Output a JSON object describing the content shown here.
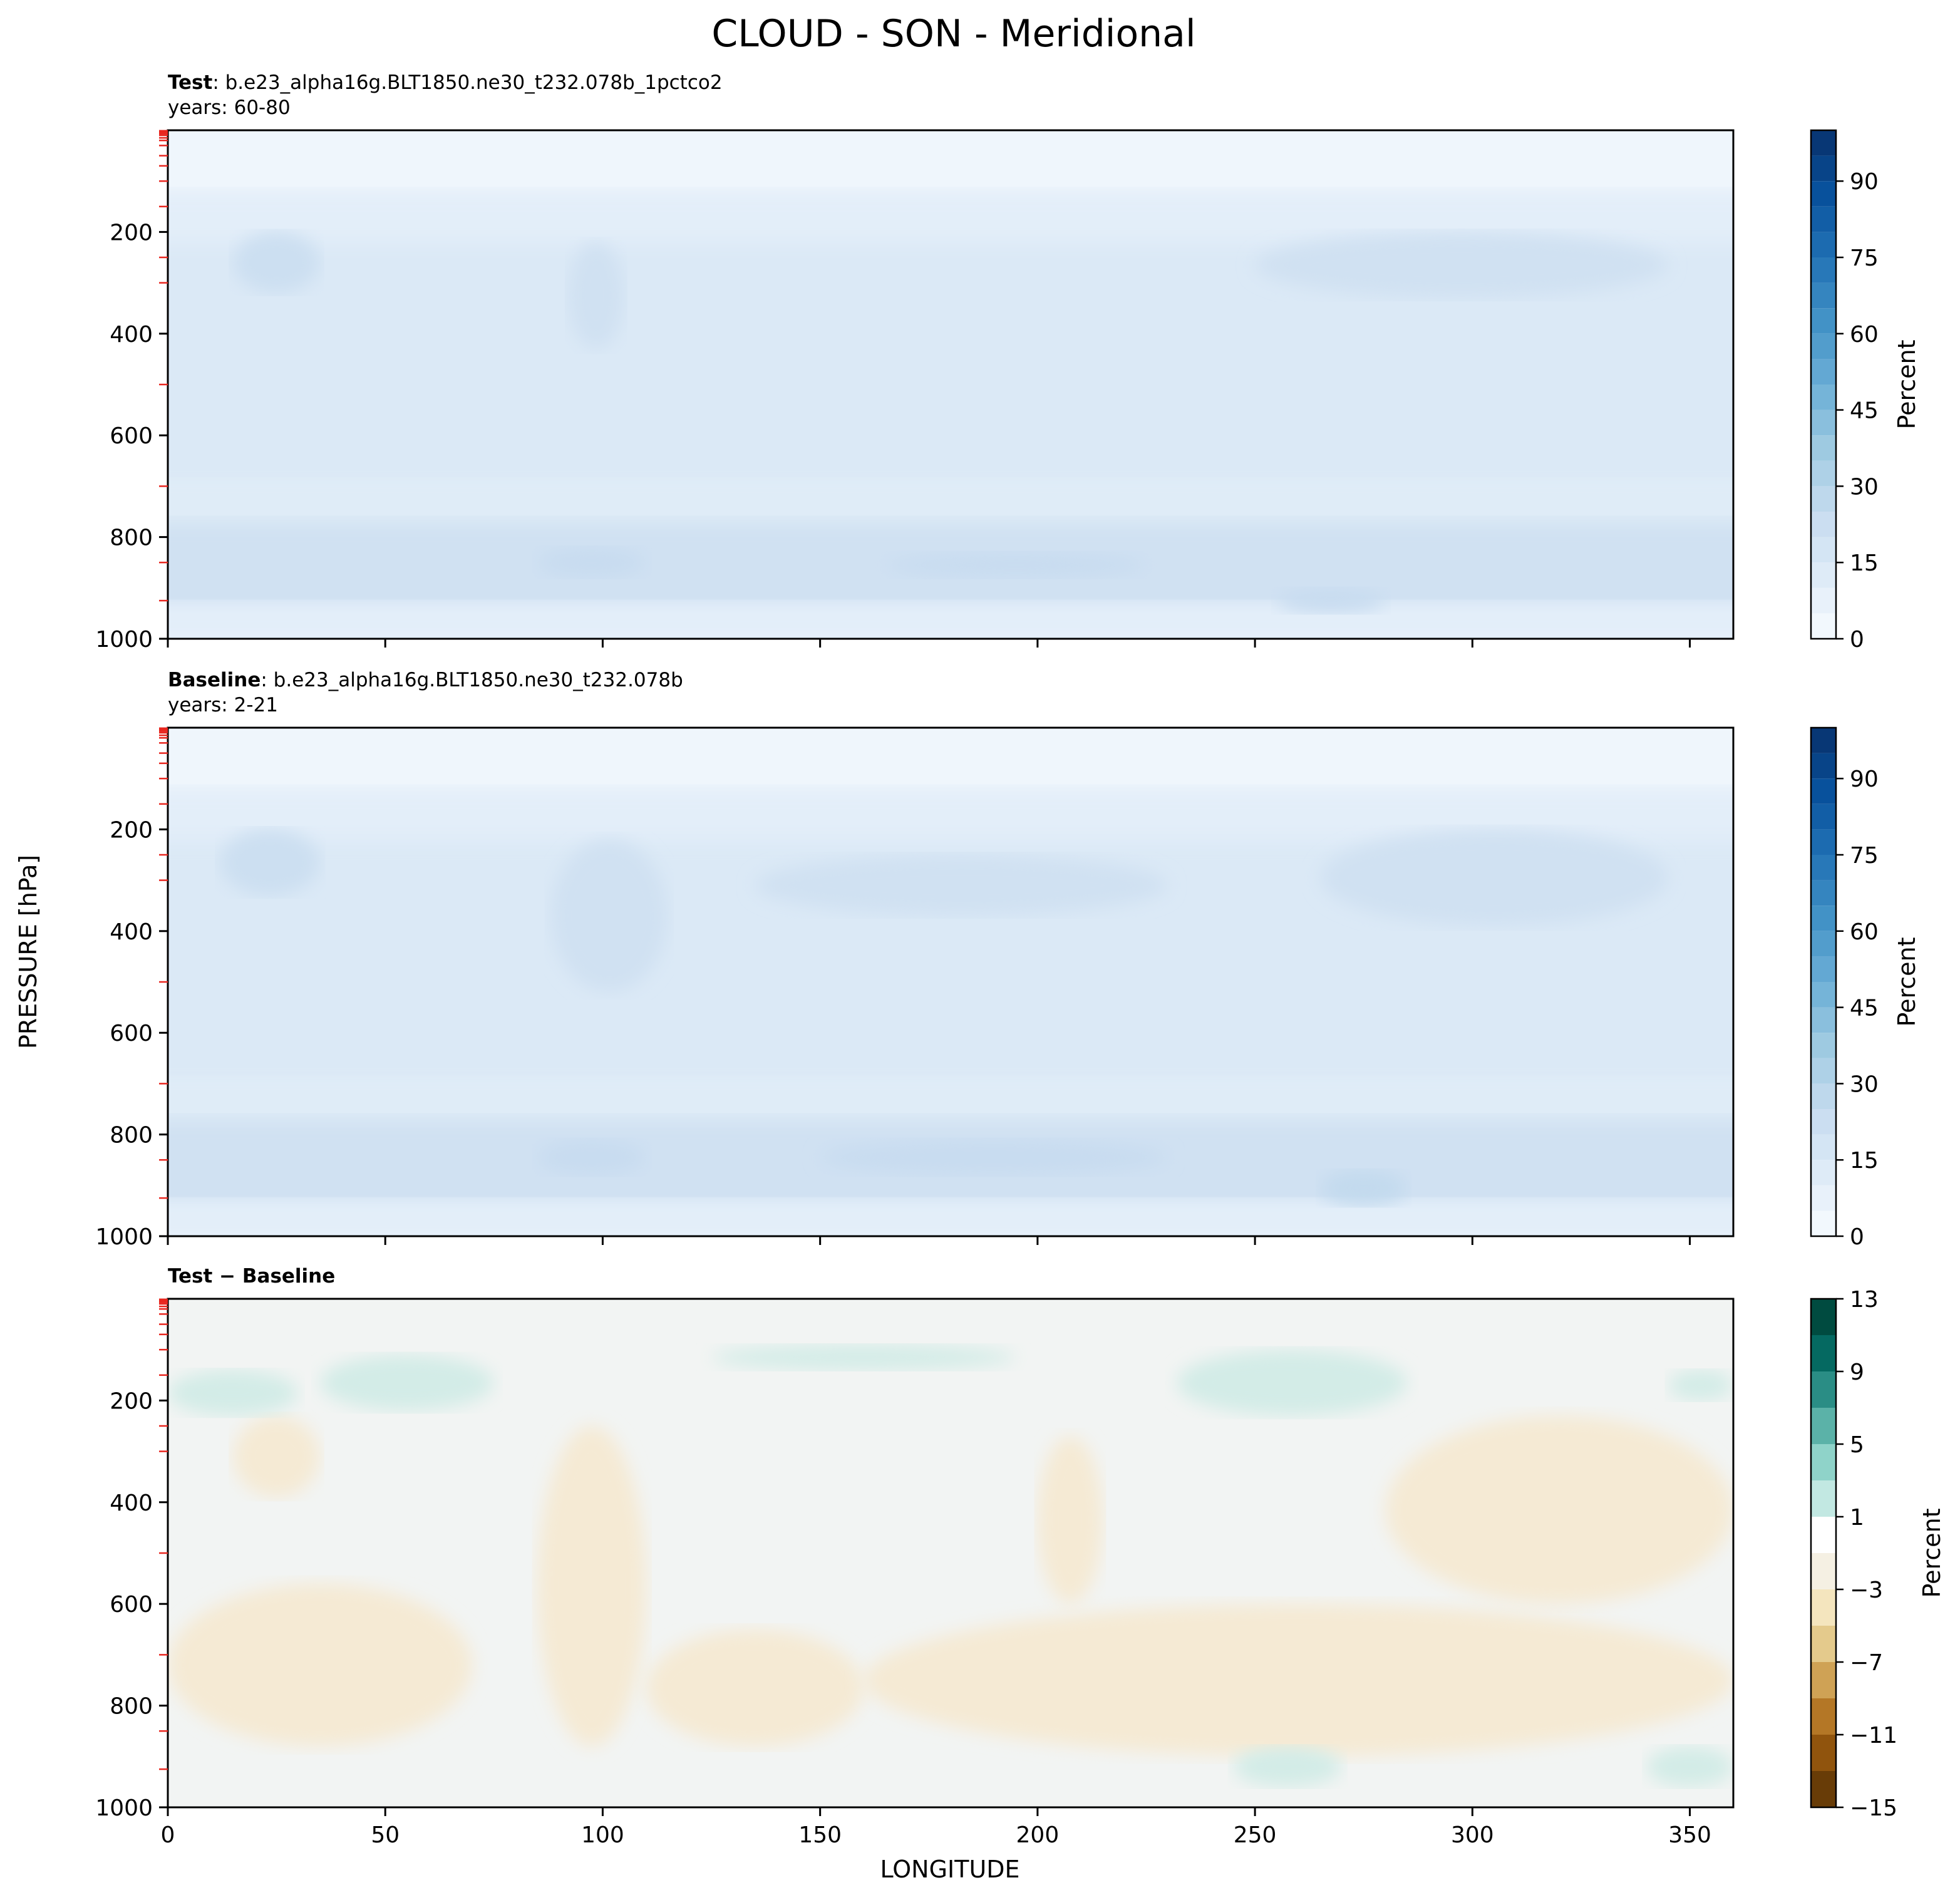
{
  "figure": {
    "title": "CLOUD - SON - Meridional",
    "ylabel": "PRESSURE [hPa]",
    "xlabel": "LONGITUDE"
  },
  "panels": [
    {
      "id": "test",
      "title_bold": "Test",
      "title_rest": ": b.e23_alpha16g.BLT1850.ne30_t232.078b_1pctco2",
      "subtitle": "years: 60-80"
    },
    {
      "id": "baseline",
      "title_bold": "Baseline",
      "title_rest": ": b.e23_alpha16g.BLT1850.ne30_t232.078b",
      "subtitle": "years: 2-21"
    },
    {
      "id": "diff",
      "title_bold": "Test",
      "title_mid": " − ",
      "title_bold2": "Baseline",
      "subtitle": ""
    }
  ],
  "chart_data": {
    "type": "heatmap",
    "title": "CLOUD - SON - Meridional",
    "xlabel": "LONGITUDE",
    "ylabel": "PRESSURE [hPa]",
    "xlim": [
      0,
      360
    ],
    "ylim": [
      1000,
      0
    ],
    "xticks": [
      0,
      50,
      100,
      150,
      200,
      250,
      300,
      350
    ],
    "xtick_labels": [
      "0",
      "50",
      "100",
      "150",
      "200",
      "250",
      "300",
      "350"
    ],
    "yticks": [
      200,
      400,
      600,
      800,
      1000
    ],
    "ytick_labels": [
      "200",
      "400",
      "600",
      "800",
      "1000"
    ],
    "minor_red_ticks_hPa": [
      1,
      3,
      5,
      7,
      10,
      15,
      20,
      30,
      50,
      70,
      100,
      150,
      250,
      300,
      500,
      700,
      850,
      925
    ],
    "colorbars": [
      {
        "panel": "test",
        "label": "Percent",
        "cmap": "Blues",
        "levels": [
          0,
          5,
          10,
          15,
          20,
          25,
          30,
          35,
          40,
          45,
          50,
          55,
          60,
          65,
          70,
          75,
          80,
          85,
          90,
          95,
          100
        ],
        "ticks": [
          0,
          15,
          30,
          45,
          60,
          75,
          90
        ],
        "tick_labels": [
          "0",
          "15",
          "30",
          "45",
          "60",
          "75",
          "90"
        ]
      },
      {
        "panel": "baseline",
        "label": "Percent",
        "cmap": "Blues",
        "levels": [
          0,
          5,
          10,
          15,
          20,
          25,
          30,
          35,
          40,
          45,
          50,
          55,
          60,
          65,
          70,
          75,
          80,
          85,
          90,
          95,
          100
        ],
        "ticks": [
          0,
          15,
          30,
          45,
          60,
          75,
          90
        ],
        "tick_labels": [
          "0",
          "15",
          "30",
          "45",
          "60",
          "75",
          "90"
        ]
      },
      {
        "panel": "diff",
        "label": "Percent",
        "cmap": "BrBG",
        "levels": [
          -15,
          -13,
          -11,
          -9,
          -7,
          -5,
          -3,
          -1,
          1,
          3,
          5,
          7,
          9,
          11,
          13
        ],
        "ticks": [
          13,
          9,
          5,
          1,
          -3,
          -7,
          -11,
          -15
        ],
        "tick_labels": [
          "13",
          "9",
          "5",
          "1",
          "−3",
          "−7",
          "−11",
          "−15"
        ]
      }
    ],
    "fields": {
      "test": {
        "description_values": "Cloud fraction (%) by longitude and pressure",
        "bands": [
          {
            "p_range": [
              0,
              130
            ],
            "value": 2
          },
          {
            "p_range": [
              130,
              230
            ],
            "value": 8
          },
          {
            "p_range": [
              230,
              700
            ],
            "value": 12
          },
          {
            "p_range": [
              700,
              780
            ],
            "value": 10
          },
          {
            "p_range": [
              780,
              940
            ],
            "value": 18
          },
          {
            "p_range": [
              940,
              1000
            ],
            "value": 8
          }
        ],
        "features": [
          {
            "lon": [
              15,
              35
            ],
            "p": [
              200,
              320
            ],
            "value": 20
          },
          {
            "lon": [
              92,
              105
            ],
            "p": [
              220,
              430
            ],
            "value": 18
          },
          {
            "lon": [
              250,
              345
            ],
            "p": [
              200,
              330
            ],
            "value": 18
          },
          {
            "lon": [
              85,
              110
            ],
            "p": [
              820,
              880
            ],
            "value": 22
          },
          {
            "lon": [
              165,
              225
            ],
            "p": [
              830,
              880
            ],
            "value": 22
          },
          {
            "lon": [
              255,
              280
            ],
            "p": [
              900,
              950
            ],
            "value": 22
          }
        ]
      },
      "baseline": {
        "description_values": "Cloud fraction (%) by longitude and pressure",
        "bands": [
          {
            "p_range": [
              0,
              130
            ],
            "value": 2
          },
          {
            "p_range": [
              130,
              230
            ],
            "value": 8
          },
          {
            "p_range": [
              230,
              700
            ],
            "value": 12
          },
          {
            "p_range": [
              700,
              780
            ],
            "value": 10
          },
          {
            "p_range": [
              780,
              940
            ],
            "value": 18
          },
          {
            "p_range": [
              940,
              1000
            ],
            "value": 8
          }
        ],
        "features": [
          {
            "lon": [
              12,
              35
            ],
            "p": [
              200,
              330
            ],
            "value": 20
          },
          {
            "lon": [
              88,
              115
            ],
            "p": [
              220,
              520
            ],
            "value": 18
          },
          {
            "lon": [
              135,
              230
            ],
            "p": [
              250,
              370
            ],
            "value": 18
          },
          {
            "lon": [
              265,
              345
            ],
            "p": [
              200,
              390
            ],
            "value": 18
          },
          {
            "lon": [
              85,
              110
            ],
            "p": [
              810,
              880
            ],
            "value": 22
          },
          {
            "lon": [
              150,
              230
            ],
            "p": [
              810,
              880
            ],
            "value": 22
          },
          {
            "lon": [
              265,
              285
            ],
            "p": [
              870,
              940
            ],
            "value": 24
          }
        ]
      },
      "diff": {
        "description_values": "Test minus Baseline cloud fraction (%)",
        "background_value": 0,
        "positive_regions": [
          {
            "lon": [
              0,
              30
            ],
            "p": [
              140,
              230
            ],
            "value": 2
          },
          {
            "lon": [
              35,
              75
            ],
            "p": [
              110,
              220
            ],
            "value": 2
          },
          {
            "lon": [
              125,
              195
            ],
            "p": [
              90,
              140
            ],
            "value": 2
          },
          {
            "lon": [
              232,
              285
            ],
            "p": [
              100,
              230
            ],
            "value": 2
          },
          {
            "lon": [
              345,
              360
            ],
            "p": [
              140,
              200
            ],
            "value": 2
          },
          {
            "lon": [
              245,
              270
            ],
            "p": [
              880,
              960
            ],
            "value": 2
          },
          {
            "lon": [
              340,
              360
            ],
            "p": [
              880,
              960
            ],
            "value": 2
          }
        ],
        "negative_regions": [
          {
            "lon": [
              15,
              35
            ],
            "p": [
              230,
              390
            ],
            "value": -2
          },
          {
            "lon": [
              0,
              70
            ],
            "p": [
              560,
              880
            ],
            "value": -2
          },
          {
            "lon": [
              85,
              110
            ],
            "p": [
              250,
              880
            ],
            "value": -2
          },
          {
            "lon": [
              110,
              160
            ],
            "p": [
              650,
              880
            ],
            "value": -2
          },
          {
            "lon": [
              160,
              360
            ],
            "p": [
              600,
              900
            ],
            "value": -2
          },
          {
            "lon": [
              280,
              360
            ],
            "p": [
              230,
              600
            ],
            "value": -2
          },
          {
            "lon": [
              200,
              215
            ],
            "p": [
              270,
              600
            ],
            "value": -2
          }
        ]
      }
    }
  }
}
